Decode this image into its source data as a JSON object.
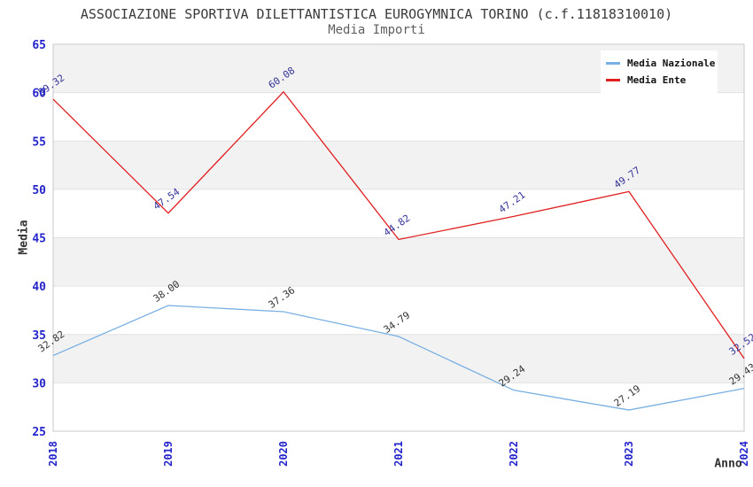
{
  "title": "ASSOCIAZIONE SPORTIVA DILETTANTISTICA EUROGYMNICA TORINO (c.f.11818310010)",
  "subtitle": "Media Importi",
  "chart_data": {
    "type": "line",
    "x": [
      "2018",
      "2019",
      "2020",
      "2021",
      "2022",
      "2023",
      "2024"
    ],
    "series": [
      {
        "name": "Media Nazionale",
        "color": "#79b0e3",
        "label_color": "#333333",
        "values": [
          32.82,
          38.0,
          37.36,
          34.79,
          29.24,
          27.19,
          29.43
        ]
      },
      {
        "name": "Media Ente",
        "color": "#e01f1f",
        "label_color": "#333399",
        "values": [
          59.32,
          47.54,
          60.08,
          44.82,
          47.21,
          49.77,
          32.52
        ]
      }
    ],
    "xlabel": "Anno",
    "ylabel": "Media",
    "ylim": [
      25,
      65
    ],
    "ytick_step": 5,
    "tick_color": "#2424cc",
    "band_color": "#f2f2f2",
    "gridline_color": "#e2e2e2",
    "plot_border_color": "#c9c9c9",
    "legend_position": "top-right",
    "grid": "horizontal-bands"
  }
}
